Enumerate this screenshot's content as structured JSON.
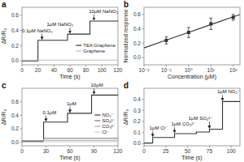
{
  "chart_data": [
    {
      "type": "line",
      "title": "a",
      "xlabel": "Time (s)",
      "ylabel": "ΔR/R₀",
      "xlim": [
        0,
        120
      ],
      "ylim": [
        -0.05,
        0.7
      ],
      "xticks": [
        0,
        20,
        40,
        60,
        80,
        100,
        120
      ],
      "yticks": [
        {
          "value": 0.0,
          "label": "0.0"
        },
        {
          "value": 0.2,
          "label": "0.2"
        },
        {
          "value": 0.4,
          "label": "0.4"
        },
        {
          "value": 0.6,
          "label": "0.6"
        }
      ],
      "legend": "lower right",
      "series": [
        {
          "name": "TEA Graphene",
          "color": "#333333",
          "x": [
            0,
            20,
            30,
            57,
            62,
            85,
            92
          ],
          "x_end": [
            20,
            30,
            57,
            62,
            85,
            92,
            120
          ],
          "values": [
            0.0,
            0.27,
            0.27,
            0.35,
            0.35,
            0.52,
            0.52
          ]
        },
        {
          "name": "Graphene",
          "color": "#bbbbbb",
          "x": [
            0
          ],
          "x_end": [
            120
          ],
          "values": [
            0.01
          ]
        }
      ],
      "annotations": [
        {
          "text": "0.1μM NaNO₂",
          "x": 25,
          "y": 0.27
        },
        {
          "text": "1μM NaNO₂",
          "x": 60,
          "y": 0.35
        },
        {
          "text": "10μM NaNO₂",
          "x": 90,
          "y": 0.52
        }
      ]
    },
    {
      "type": "scatter",
      "title": "b",
      "xlabel": "Concentration (μM)",
      "ylabel": "Normalized response",
      "log": "x",
      "xlim": [
        0.01,
        199.5262314968879
      ],
      "ylim": [
        -0.1,
        0.7
      ],
      "xticks": [
        {
          "value": 0.01,
          "label": "10⁻²"
        },
        {
          "value": 0.1,
          "label": "10⁻¹"
        },
        {
          "value": 1,
          "label": "10⁰"
        },
        {
          "value": 10,
          "label": "10¹"
        },
        {
          "value": 100,
          "label": "10²"
        }
      ],
      "yticks": [
        {
          "value": 0.0,
          "label": "0.0"
        },
        {
          "value": 0.2,
          "label": "0.2"
        },
        {
          "value": 0.4,
          "label": "0.4"
        },
        {
          "value": 0.6,
          "label": "0.6"
        }
      ],
      "series": [
        {
          "type": "line",
          "color": "#333333",
          "x": [
            0.01,
            0.1,
            1,
            10,
            100,
            199.5262314968879
          ],
          "values": [
            0.135,
            0.243,
            0.351,
            0.459,
            0.567,
            0.5994
          ]
        },
        {
          "type": "scatter",
          "color": "#333333",
          "marker": "square",
          "x": [
            0.1,
            1.0,
            10.0,
            100.0
          ],
          "values": [
            0.24,
            0.35,
            0.47,
            0.56
          ],
          "errors": [
            0.05,
            0.07,
            0.08,
            0.04
          ]
        }
      ]
    },
    {
      "type": "line",
      "title": "c",
      "xlabel": "Time (s)",
      "ylabel": "ΔR/R₀",
      "xlim": [
        0,
        120
      ],
      "ylim": [
        -0.05,
        0.8
      ],
      "xticks": [
        0,
        30,
        60,
        90,
        120
      ],
      "yticks": [
        {
          "value": 0.0,
          "label": "0.0"
        },
        {
          "value": 0.2,
          "label": "0.2"
        },
        {
          "value": 0.4,
          "label": "0.4"
        },
        {
          "value": 0.6,
          "label": "0.6"
        }
      ],
      "legend": "lower right",
      "series": [
        {
          "name": "NO₂⁻",
          "color": "#333333",
          "x": [
            0,
            27,
            57,
            60,
            87,
            90
          ],
          "x_end": [
            27,
            57,
            60,
            87,
            90,
            120
          ],
          "values": [
            0.02,
            0.3,
            0.43,
            0.43,
            0.7,
            0.7
          ]
        },
        {
          "name": "SO₄²⁻",
          "color": "#777777",
          "x": [
            0,
            27
          ],
          "x_end": [
            27,
            120
          ],
          "values": [
            0.01,
            0.06
          ]
        },
        {
          "name": "CO₃²⁻",
          "color": "#aaaaaa",
          "x": [
            0,
            27
          ],
          "x_end": [
            27,
            120
          ],
          "values": [
            0.005,
            0.03
          ]
        },
        {
          "name": "Cl⁻",
          "color": "#cccccc",
          "x": [
            0,
            27
          ],
          "x_end": [
            27,
            120
          ],
          "values": [
            0.0,
            0.01
          ]
        }
      ],
      "annotations": [
        {
          "text": "0.1μM",
          "x": 30,
          "y": 0.3
        },
        {
          "text": "1μM",
          "x": 60,
          "y": 0.43
        },
        {
          "text": "10μM",
          "x": 90,
          "y": 0.7
        }
      ]
    },
    {
      "type": "line",
      "title": "d",
      "xlabel": "Time (s)",
      "ylabel": "ΔR/R₀",
      "xlim": [
        0,
        110
      ],
      "ylim": [
        -0.02,
        0.5
      ],
      "xticks": [
        0,
        25,
        50,
        75,
        100
      ],
      "yticks": [
        {
          "value": 0.0,
          "label": "0.0"
        },
        {
          "value": 0.1,
          "label": "0.1"
        },
        {
          "value": 0.2,
          "label": "0.2"
        },
        {
          "value": 0.3,
          "label": "0.3"
        },
        {
          "value": 0.4,
          "label": "0.4"
        }
      ],
      "series": [
        {
          "color": "#333333",
          "x": [
            0,
            10,
            35,
            50,
            60,
            75,
            90,
            100
          ],
          "x_end": [
            10,
            35,
            50,
            60,
            75,
            90,
            100,
            110
          ],
          "values": [
            0.005,
            0.055,
            0.09,
            0.09,
            0.105,
            0.13,
            0.38,
            0.38
          ]
        }
      ],
      "annotations": [
        {
          "text": "1μM Cl⁻",
          "x": 10,
          "y": 0.055
        },
        {
          "text": "1μM CO₃²⁻",
          "x": 35,
          "y": 0.09
        },
        {
          "text": "1μM SO₄²⁻",
          "x": 75,
          "y": 0.13
        },
        {
          "text": "1μM NO₂⁻",
          "x": 90,
          "y": 0.38
        }
      ]
    }
  ]
}
